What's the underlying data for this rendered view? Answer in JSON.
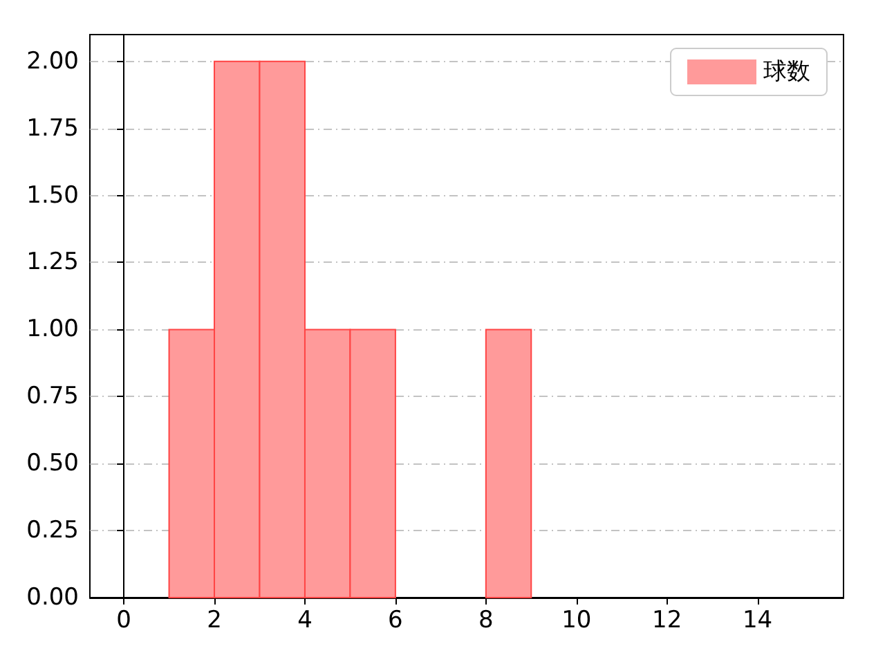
{
  "chart_data": {
    "type": "histogram",
    "bins": [
      1,
      2,
      3,
      4,
      5,
      6,
      7,
      8,
      9
    ],
    "series": [
      {
        "name": "球数",
        "color": "#ff9a9a",
        "values": [
          1,
          2,
          2,
          1,
          1,
          0,
          0,
          1
        ]
      }
    ],
    "xlim": [
      -0.75,
      15.9
    ],
    "xticks": [
      0,
      2,
      4,
      6,
      8,
      10,
      12,
      14
    ],
    "ylim": [
      0,
      2.1
    ],
    "yticks": [
      {
        "value": 0,
        "label": "0.00"
      },
      {
        "value": 0.25,
        "label": "0.25"
      },
      {
        "value": 0.5,
        "label": "0.50"
      },
      {
        "value": 0.75,
        "label": "0.75"
      },
      {
        "value": 1,
        "label": "1.00"
      },
      {
        "value": 1.25,
        "label": "1.25"
      },
      {
        "value": 1.5,
        "label": "1.50"
      },
      {
        "value": 1.75,
        "label": "1.75"
      },
      {
        "value": 2,
        "label": "2.00"
      }
    ],
    "grid": "y",
    "legend": "top right"
  }
}
